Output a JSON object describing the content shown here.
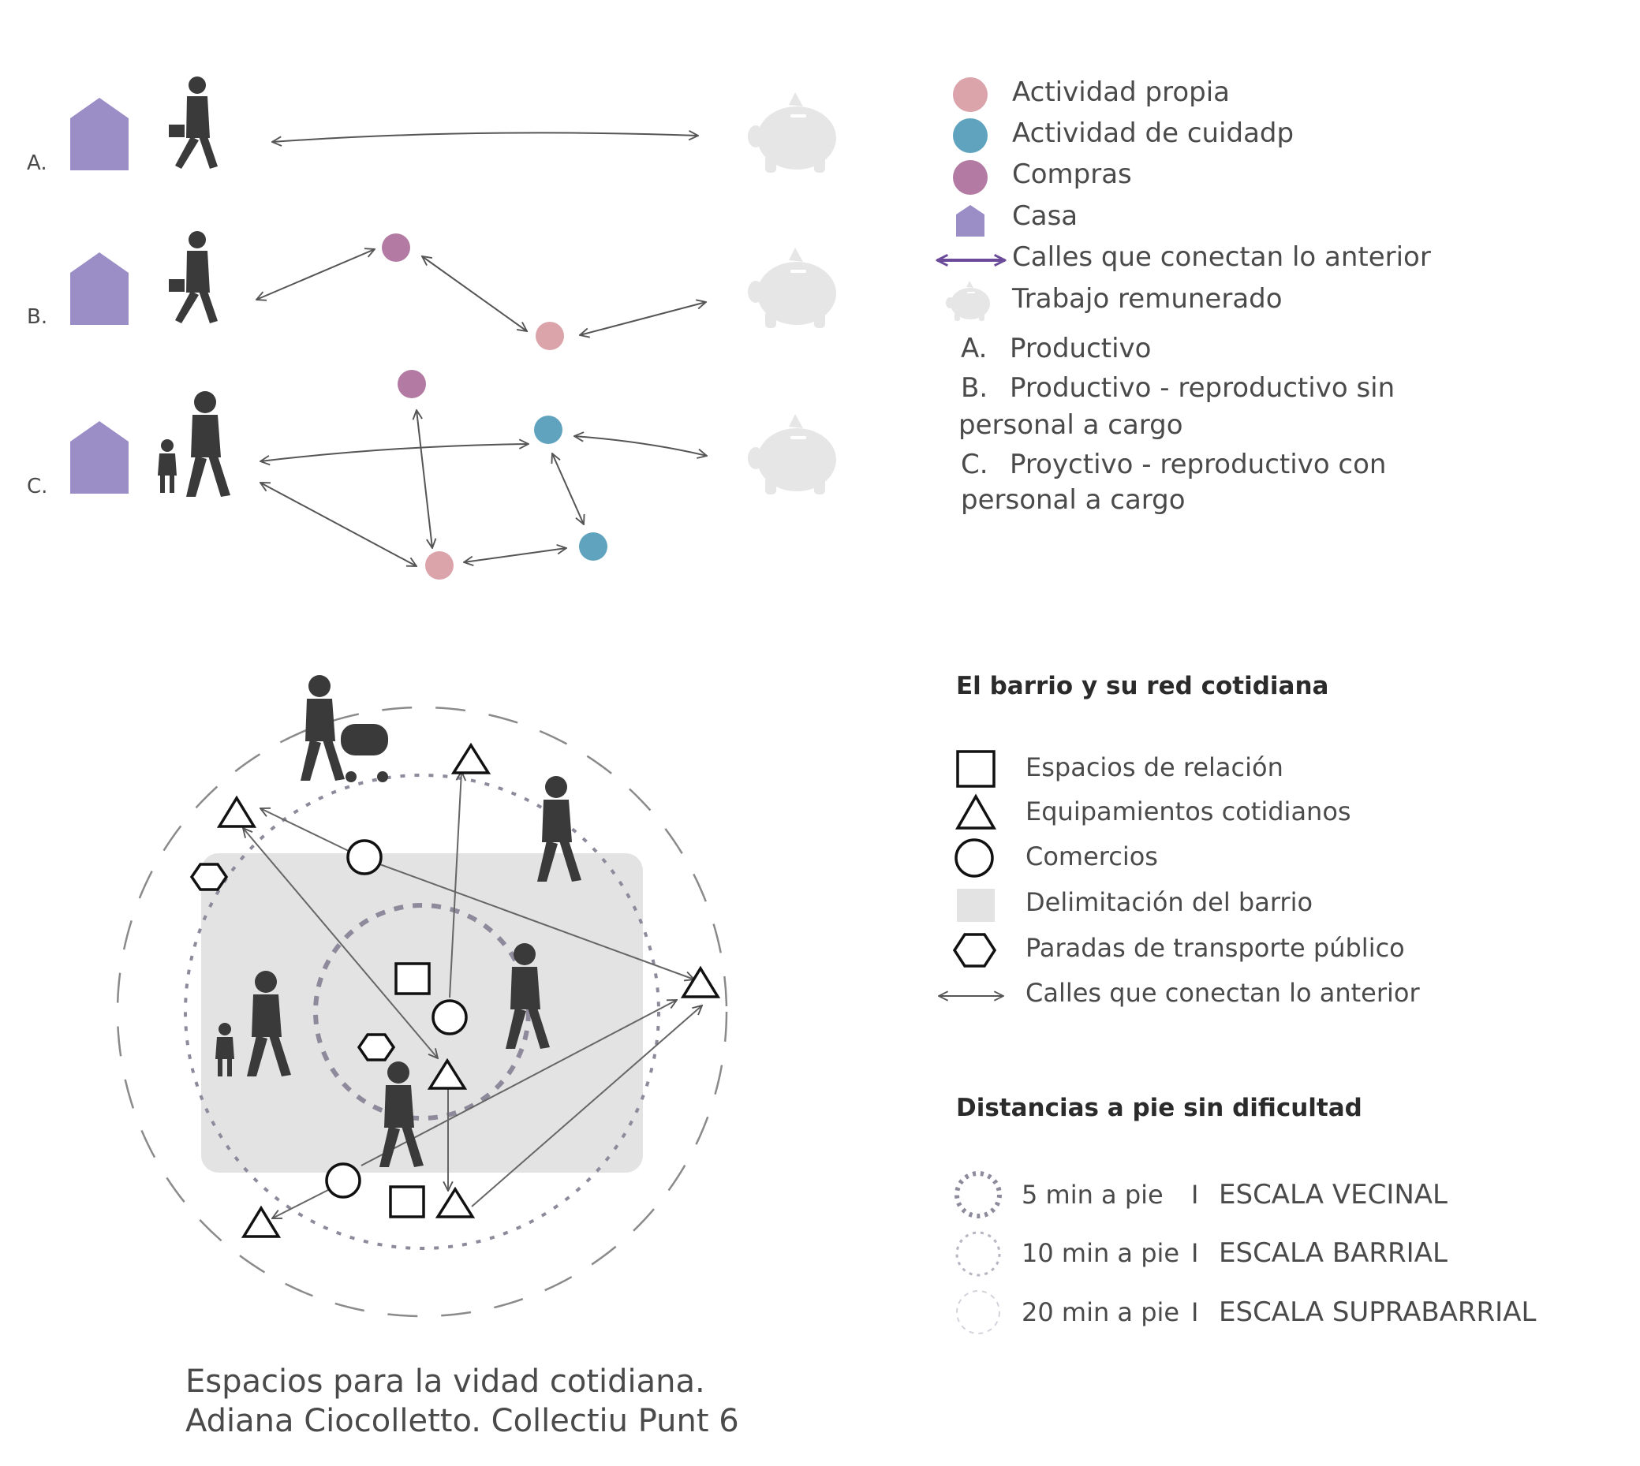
{
  "rows": [
    {
      "letter": "A."
    },
    {
      "letter": "B."
    },
    {
      "letter": "C."
    }
  ],
  "legend_top": {
    "items": [
      {
        "label": "Actividad propia",
        "color": "#dba3aa"
      },
      {
        "label": "Actividad de cuidadp",
        "color": "#5fa3bf"
      },
      {
        "label": "Compras",
        "color": "#b37aa3"
      },
      {
        "label": "Casa",
        "color": "#9b8ec6"
      },
      {
        "label": "Calles que conectan lo anterior",
        "color": "#6b4a9a"
      },
      {
        "label": "Trabajo remunerado",
        "color": "#e6e6e6"
      }
    ],
    "types": [
      {
        "letter": "A.",
        "lines": [
          "Productivo"
        ]
      },
      {
        "letter": "B.",
        "lines": [
          "Productivo - reproductivo sin",
          "personal a cargo"
        ]
      },
      {
        "letter": "C.",
        "lines": [
          "Proуctivo - reproductivo con",
          "personal a cargo"
        ]
      }
    ]
  },
  "legend_neighborhood": {
    "title": "El barrio y su red cotidiana",
    "items": [
      {
        "label": "Espacios de relación",
        "icon": "square-icon"
      },
      {
        "label": "Equipamientos cotidianos",
        "icon": "triangle-icon"
      },
      {
        "label": "Comercios",
        "icon": "circle-icon"
      },
      {
        "label": "Delimitación del barrio",
        "icon": "grey-area-icon"
      },
      {
        "label": "Paradas de transporte público",
        "icon": "hexagon-icon"
      },
      {
        "label": "Calles que conectan lo anterior",
        "icon": "double-arrow-icon"
      }
    ]
  },
  "legend_distances": {
    "title": "Distancias a pie sin dificultad",
    "items": [
      {
        "time": "5 min a pie",
        "scale": "ESCALA VECINAL"
      },
      {
        "time": "10 min a pie",
        "scale": "ESCALA BARRIAL"
      },
      {
        "time": "20 min a pie",
        "scale": "ESCALA SUPRABARRIAL"
      }
    ],
    "separator": "I"
  },
  "caption": {
    "line1": "Espacios para la vidad cotidiana.",
    "line2": "Adiana Ciocolletto. Collectiu Punt 6"
  },
  "colors": {
    "house": "#9b8ec6",
    "own_activity": "#dba3aa",
    "care_activity": "#5fa3bf",
    "shopping": "#b37aa3",
    "piggy": "#e6e6e6",
    "figure": "#3a3a3a",
    "neighborhood": "#e3e3e3"
  }
}
